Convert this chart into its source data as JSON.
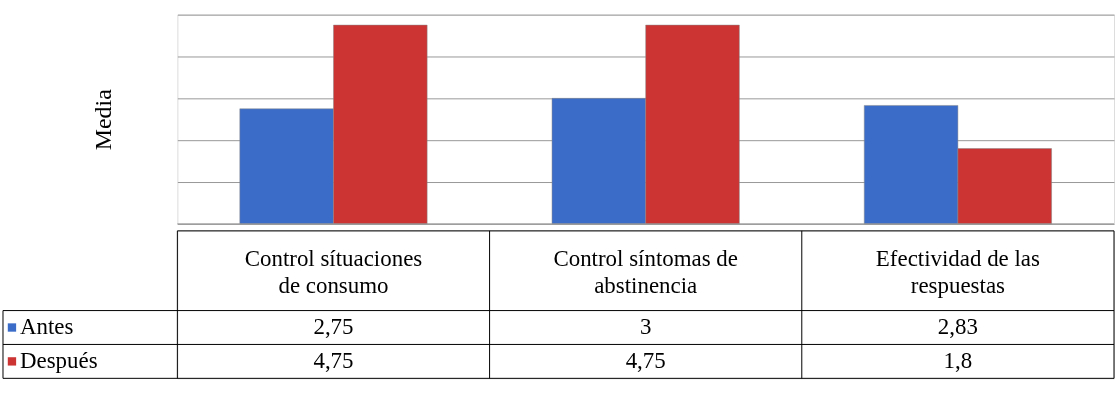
{
  "chart_data": {
    "type": "bar",
    "ylabel": "Media",
    "categories": [
      "Control sítuaciones de consumo",
      "Control síntomas de abstinencia",
      "Efectividad de las respuestas"
    ],
    "series": [
      {
        "name": "Antes",
        "color": "#3b6cc8",
        "values": [
          2.75,
          3,
          2.83
        ],
        "value_labels": [
          "2,75",
          "3",
          "2,83"
        ]
      },
      {
        "name": "Después",
        "color": "#cc3333",
        "values": [
          4.75,
          4.75,
          1.8
        ],
        "value_labels": [
          "4,75",
          "4,75",
          "1,8"
        ]
      }
    ],
    "ylim": [
      0,
      5
    ],
    "yticks": [
      {
        "value": 0,
        "label": null
      },
      {
        "value": 1,
        "label": null
      },
      {
        "value": 2,
        "label": null
      },
      {
        "value": 3,
        "label": null
      },
      {
        "value": 4,
        "label": null
      },
      {
        "value": 5,
        "label": null
      }
    ],
    "tick_labels": false,
    "grid": "y",
    "legend": "bottom left"
  }
}
